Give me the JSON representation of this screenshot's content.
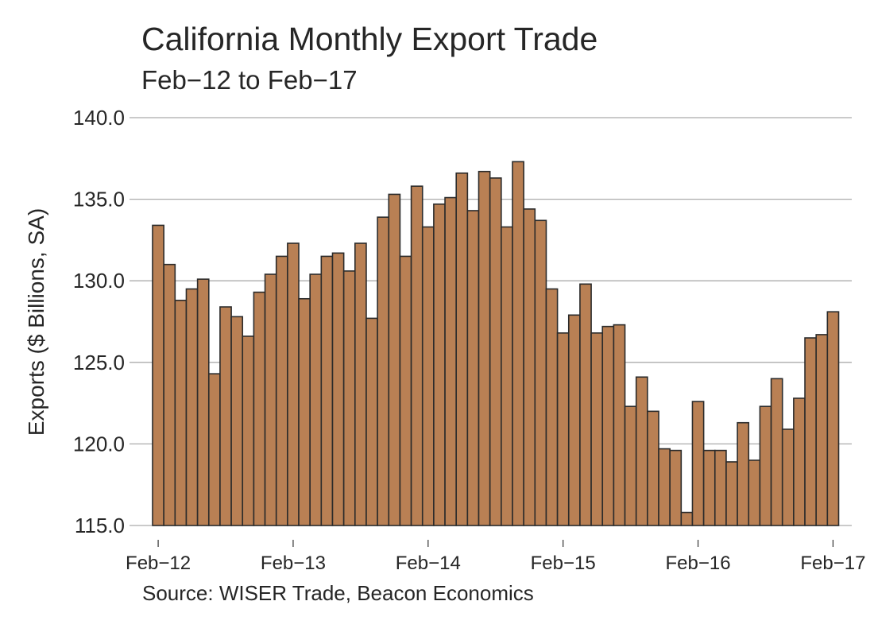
{
  "chart_data": {
    "type": "bar",
    "title": "California Monthly Export Trade",
    "subtitle": "Feb−12 to Feb−17",
    "xlabel": "",
    "ylabel": "Exports ($ Billions, SA)",
    "source": "Source: WISER Trade, Beacon Economics",
    "ylim": [
      115.0,
      140.0
    ],
    "yticks": [
      "115.0",
      "120.0",
      "125.0",
      "130.0",
      "135.0",
      "140.0"
    ],
    "ytick_values": [
      115,
      120,
      125,
      130,
      135,
      140
    ],
    "xtick_labels": [
      "Feb−12",
      "Feb−13",
      "Feb−14",
      "Feb−15",
      "Feb−16",
      "Feb−17"
    ],
    "xtick_indices": [
      0,
      12,
      24,
      36,
      48,
      60
    ],
    "grid": "horizontal",
    "legend": "none",
    "bar_color": "#B98054",
    "bar_edge_color": "#2B2B2B",
    "categories": [
      "Feb-12",
      "Mar-12",
      "Apr-12",
      "May-12",
      "Jun-12",
      "Jul-12",
      "Aug-12",
      "Sep-12",
      "Oct-12",
      "Nov-12",
      "Dec-12",
      "Jan-13",
      "Feb-13",
      "Mar-13",
      "Apr-13",
      "May-13",
      "Jun-13",
      "Jul-13",
      "Aug-13",
      "Sep-13",
      "Oct-13",
      "Nov-13",
      "Dec-13",
      "Jan-14",
      "Feb-14",
      "Mar-14",
      "Apr-14",
      "May-14",
      "Jun-14",
      "Jul-14",
      "Aug-14",
      "Sep-14",
      "Oct-14",
      "Nov-14",
      "Dec-14",
      "Jan-15",
      "Feb-15",
      "Mar-15",
      "Apr-15",
      "May-15",
      "Jun-15",
      "Jul-15",
      "Aug-15",
      "Sep-15",
      "Oct-15",
      "Nov-15",
      "Dec-15",
      "Jan-16",
      "Feb-16",
      "Mar-16",
      "Apr-16",
      "May-16",
      "Jun-16",
      "Jul-16",
      "Aug-16",
      "Sep-16",
      "Oct-16",
      "Nov-16",
      "Dec-16",
      "Jan-17",
      "Feb-17"
    ],
    "values": [
      133.4,
      131.0,
      128.8,
      129.5,
      130.1,
      124.3,
      128.4,
      127.8,
      126.6,
      129.3,
      130.4,
      131.5,
      132.3,
      128.9,
      130.4,
      131.5,
      131.7,
      130.6,
      132.3,
      127.7,
      133.9,
      135.3,
      131.5,
      135.8,
      133.3,
      134.7,
      135.1,
      136.6,
      134.3,
      136.7,
      136.3,
      133.3,
      137.3,
      134.4,
      133.7,
      129.5,
      126.8,
      127.9,
      129.8,
      126.8,
      127.2,
      127.3,
      122.3,
      124.1,
      122.0,
      119.7,
      119.6,
      115.8,
      122.6,
      119.6,
      119.6,
      118.9,
      121.3,
      119.0,
      122.3,
      124.0,
      120.9,
      122.8,
      126.5,
      126.7,
      128.1
    ]
  }
}
